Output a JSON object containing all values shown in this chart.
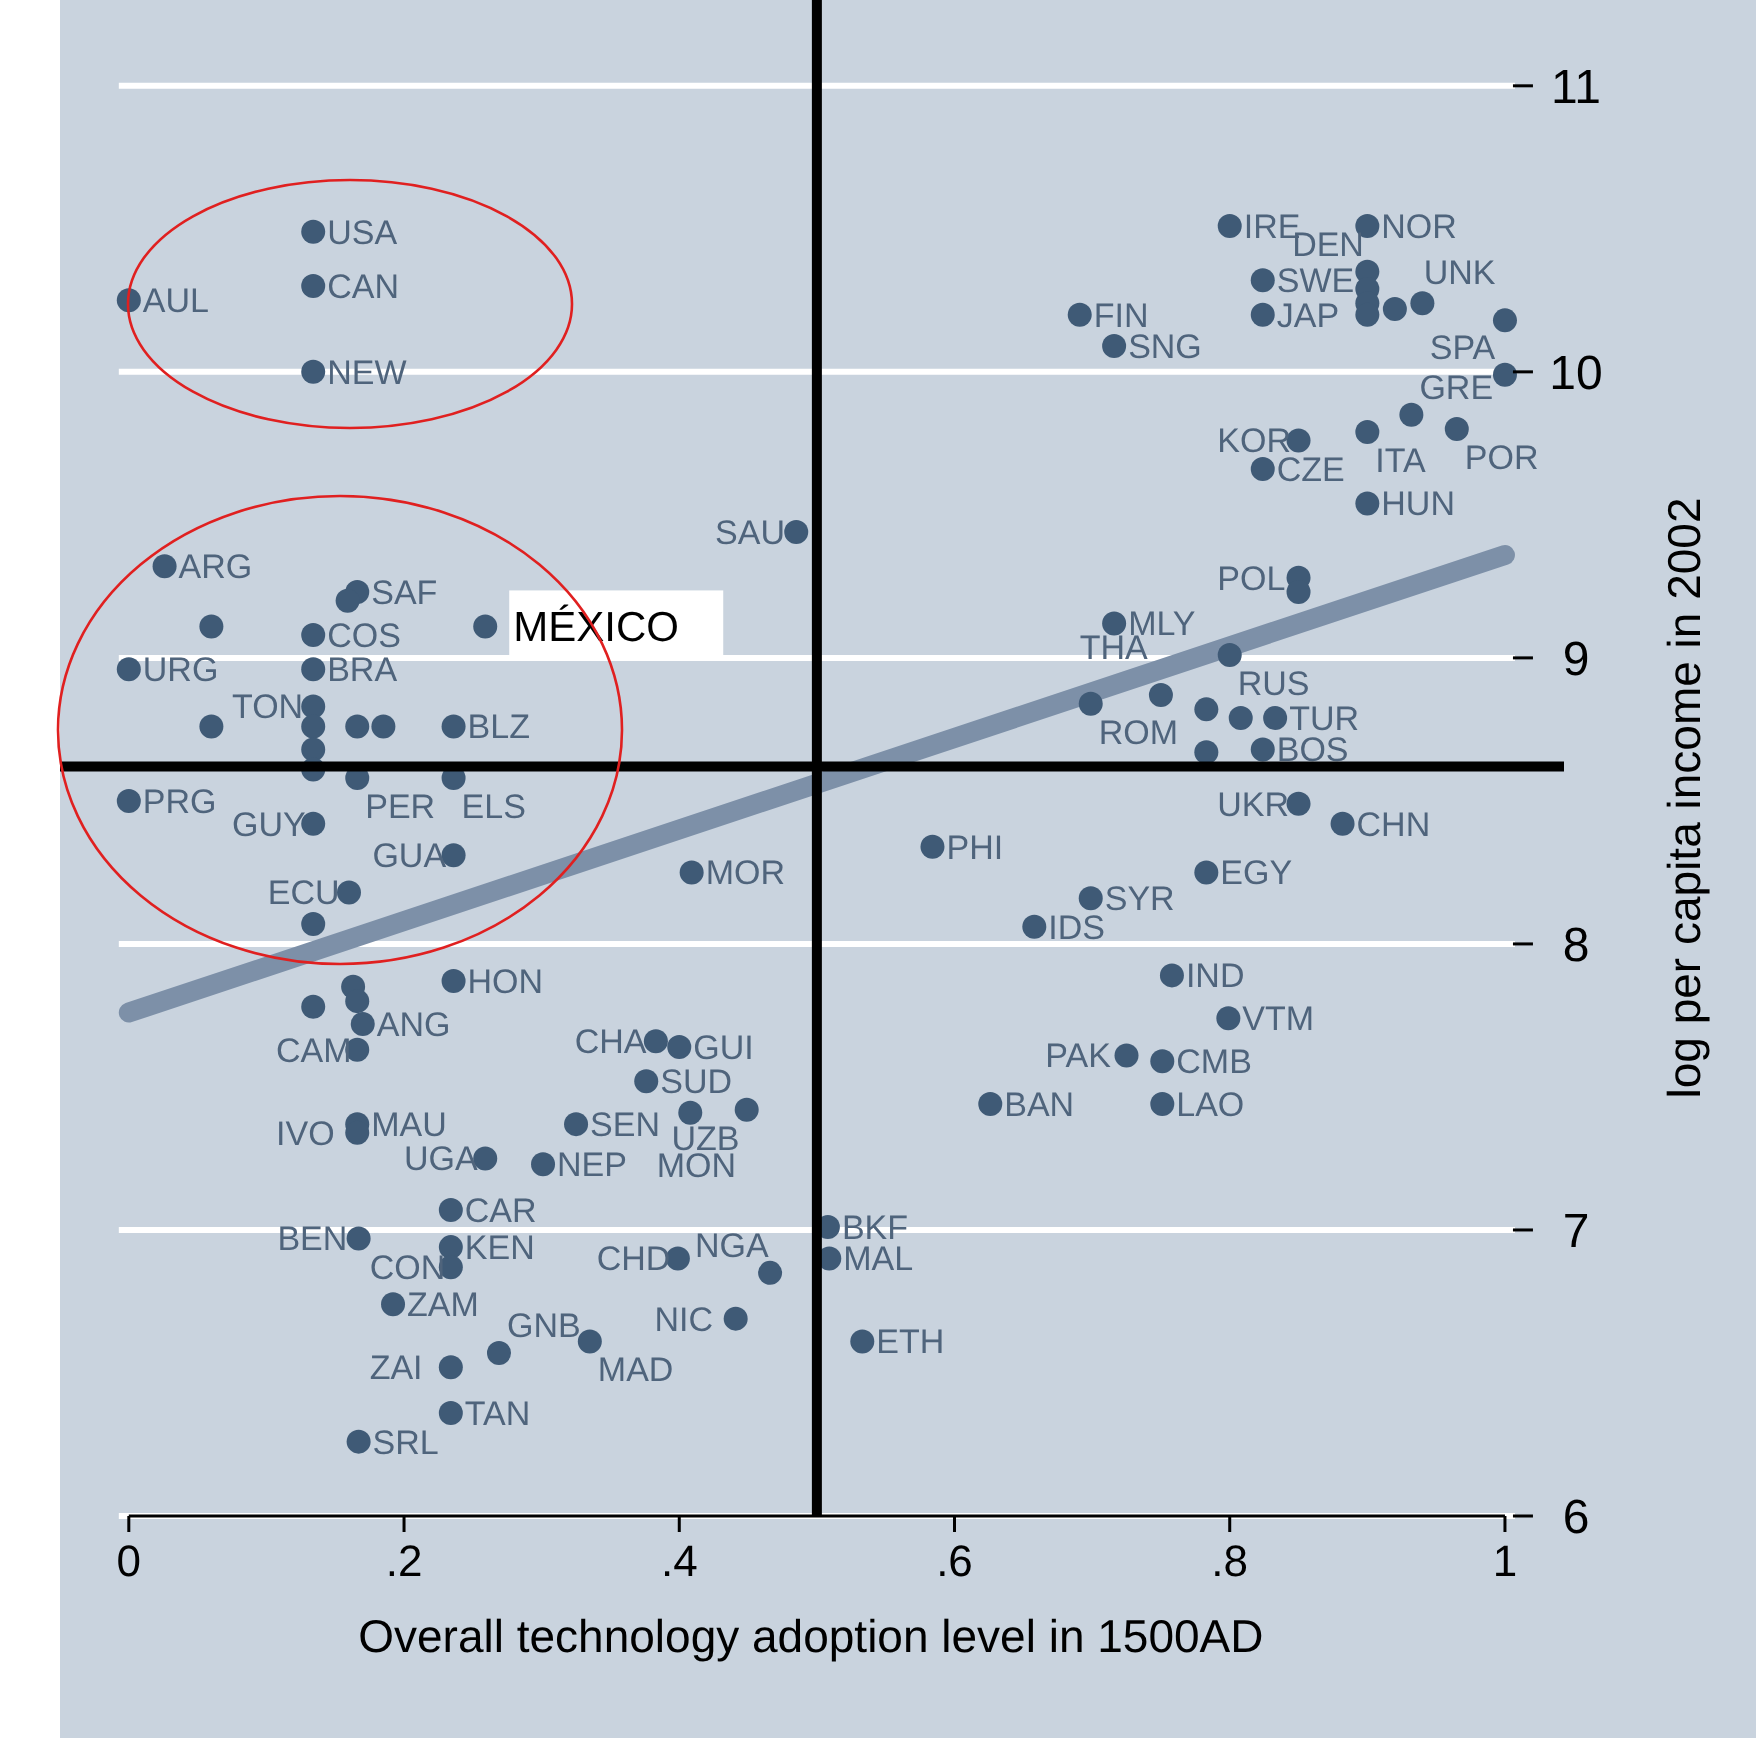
{
  "chart_data": {
    "type": "scatter",
    "xlabel": "Overall technology adoption level in 1500AD",
    "ylabel": "log per capita income in 2002",
    "xlim": [
      -0.05,
      1.04
    ],
    "ylim": [
      6,
      11.3
    ],
    "xticks": [
      0,
      {
        "value": 0.2,
        "label": ".2"
      },
      {
        "value": 0.4,
        "label": ".4"
      },
      {
        "value": 0.6,
        "label": ".6"
      },
      {
        "value": 0.8,
        "label": ".8"
      },
      1
    ],
    "yticks": [
      6,
      7,
      8,
      9,
      10,
      11
    ],
    "grid": "y",
    "marker": "circle",
    "ref_lines": [
      {
        "axis": "x",
        "value": 0.5,
        "color": "#000000"
      },
      {
        "axis": "y",
        "value": 8.62,
        "color": "#000000"
      }
    ],
    "annotations": [
      {
        "text": "MÉXICO",
        "x": 0.259,
        "y": 9.11
      }
    ],
    "series": [
      {
        "color": "#3f5a76",
        "x": [
          0.134,
          0.134,
          0,
          0.134,
          0.026,
          0.166,
          0.159,
          0.06,
          0.134,
          0.259,
          0,
          0.134,
          0.134,
          0.06,
          0.134,
          0.166,
          0.185,
          0.236,
          0.134,
          0.134,
          0.166,
          0.236,
          0,
          0.134,
          0.236,
          0.16,
          0.134,
          0.409,
          0.584,
          0.699,
          0.658,
          0.783,
          0.85,
          0.882,
          0.758,
          0.799,
          0.725,
          0.751,
          0.626,
          0.751,
          0.508,
          0.509,
          0.533,
          0.466,
          0.441,
          0.399,
          0.236,
          0.163,
          0.166,
          0.17,
          0.134,
          0.166,
          0.383,
          0.4,
          0.376,
          0.449,
          0.408,
          0.325,
          0.166,
          0.166,
          0.259,
          0.301,
          0.234,
          0.167,
          0.234,
          0.234,
          0.192,
          0.269,
          0.335,
          0.234,
          0.234,
          0.167,
          0.485,
          0.716,
          0.8,
          0.699,
          0.75,
          0.783,
          0.808,
          0.833,
          0.783,
          0.824,
          0.85,
          0.85,
          0.85,
          0.9,
          0.824,
          0.9,
          0.932,
          0.965,
          1,
          1,
          0.8,
          0.9,
          0.824,
          0.824,
          0.691,
          0.716,
          0.9,
          0.9,
          0.9,
          0.9,
          0.92,
          0.94
        ],
        "values": [
          10.49,
          10.3,
          10.25,
          10,
          9.32,
          9.23,
          9.2,
          9.11,
          9.08,
          9.11,
          8.96,
          8.96,
          8.83,
          8.76,
          8.76,
          8.76,
          8.76,
          8.76,
          8.68,
          8.61,
          8.58,
          8.58,
          8.5,
          8.42,
          8.31,
          8.18,
          8.07,
          8.25,
          8.34,
          8.16,
          8.06,
          8.25,
          8.49,
          8.42,
          7.89,
          7.74,
          7.61,
          7.59,
          7.44,
          7.44,
          7.01,
          6.9,
          6.61,
          6.85,
          6.69,
          6.9,
          7.87,
          7.85,
          7.8,
          7.72,
          7.78,
          7.63,
          7.66,
          7.64,
          7.52,
          7.42,
          7.41,
          7.37,
          7.37,
          7.34,
          7.25,
          7.23,
          7.07,
          6.97,
          6.94,
          6.87,
          6.74,
          6.57,
          6.61,
          6.52,
          6.36,
          6.26,
          9.44,
          9.12,
          9.01,
          8.84,
          8.87,
          8.82,
          8.79,
          8.79,
          8.67,
          8.68,
          9.28,
          9.23,
          9.76,
          9.79,
          9.66,
          9.54,
          9.85,
          9.8,
          9.99,
          10.18,
          10.51,
          10.51,
          10.32,
          10.2,
          10.2,
          10.09,
          10.35,
          10.29,
          10.24,
          10.2,
          10.22,
          10.24
        ],
        "value_labels": [
          "USA",
          "CAN",
          "AUL",
          "NEW",
          "ARG",
          "SAF",
          null,
          null,
          "COS",
          null,
          "URG",
          "BRA",
          "TON",
          null,
          null,
          null,
          null,
          "BLZ",
          null,
          null,
          "PER",
          "ELS",
          "PRG",
          "GUY",
          "GUA",
          "ECU",
          null,
          "MOR",
          "PHI",
          "SYR",
          "IDS",
          "EGY",
          "UKR",
          "CHN",
          "IND",
          "VTM",
          "PAK",
          "CMB",
          "BAN",
          "LAO",
          "BKF",
          "MAL",
          "ETH",
          "NGA",
          "NIC",
          "CHD",
          "HON",
          null,
          null,
          "ANG",
          null,
          "CAM",
          "CHA",
          "GUI",
          "SUD",
          "UZB",
          "MON",
          "SEN",
          "MAU",
          "IVO",
          "UGA",
          "NEP",
          "CAR",
          "BEN",
          "KEN",
          "CON",
          "ZAM",
          "GNB",
          "MAD",
          "ZAI",
          "TAN",
          "SRL",
          "SAU",
          "MLY",
          "RUS",
          "ROM",
          "THA",
          null,
          null,
          "TUR",
          null,
          "BOS",
          "POL",
          null,
          "KOR",
          "ITA",
          "CZE",
          "HUN",
          "GRE",
          "POR",
          "SPA",
          "UNK",
          "IRE",
          "NOR",
          "SWE",
          "JAP",
          "FIN",
          "SNG",
          "DEN",
          null,
          null,
          null,
          null,
          null
        ]
      },
      {
        "type": "line",
        "marker": "none",
        "color": "#7d90a8",
        "x": [
          0,
          1
        ],
        "values": [
          7.76,
          9.36
        ]
      }
    ]
  }
}
